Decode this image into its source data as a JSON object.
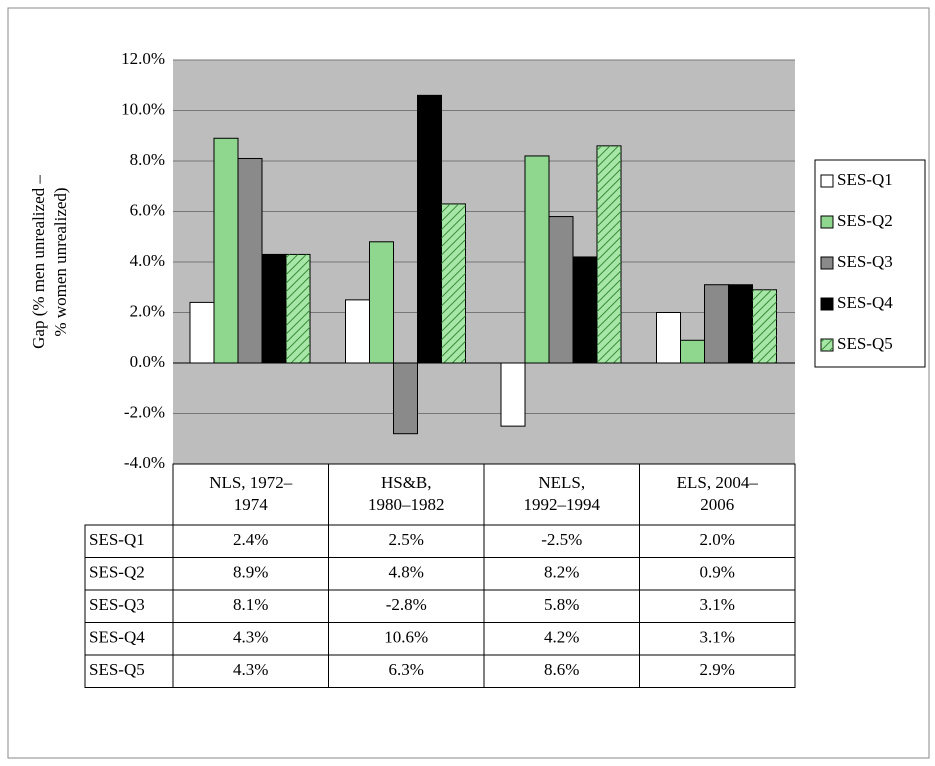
{
  "chart_data": {
    "type": "bar",
    "ylabel": [
      "Gap (% men unrealized –",
      "% women unrealized)"
    ],
    "categories": [
      "NLS, 1972–1974",
      "HS&B, 1980–1982",
      "NELS, 1992–1994",
      "ELS, 2004–2006"
    ],
    "series": [
      {
        "name": "SES-Q1",
        "color": "#ffffff",
        "values": [
          2.4,
          2.5,
          -2.5,
          2.0
        ],
        "value_labels": [
          "2.4%",
          "2.5%",
          "-2.5%",
          "2.0%"
        ]
      },
      {
        "name": "SES-Q2",
        "color": "#8fd68f",
        "values": [
          8.9,
          4.8,
          8.2,
          0.9
        ],
        "value_labels": [
          "8.9%",
          "4.8%",
          "8.2%",
          "0.9%"
        ]
      },
      {
        "name": "SES-Q3",
        "color": "#8a8a8a",
        "values": [
          8.1,
          -2.8,
          5.8,
          3.1
        ],
        "value_labels": [
          "8.1%",
          "-2.8%",
          "5.8%",
          "3.1%"
        ]
      },
      {
        "name": "SES-Q4",
        "color": "#000000",
        "values": [
          4.3,
          10.6,
          4.2,
          3.1
        ],
        "value_labels": [
          "4.3%",
          "10.6%",
          "4.2%",
          "3.1%"
        ]
      },
      {
        "name": "SES-Q5",
        "color": "#a6e6a6",
        "values": [
          4.3,
          6.3,
          8.6,
          2.9
        ],
        "value_labels": [
          "4.3%",
          "6.3%",
          "8.6%",
          "2.9%"
        ]
      }
    ],
    "ylim": [
      -4,
      12
    ],
    "yticks": [
      {
        "value": -4,
        "label": "-4.0%"
      },
      {
        "value": -2,
        "label": "-2.0%"
      },
      {
        "value": 0,
        "label": "0.0%"
      },
      {
        "value": 2,
        "label": "2.0%"
      },
      {
        "value": 4,
        "label": "4.0%"
      },
      {
        "value": 6,
        "label": "6.0%"
      },
      {
        "value": 8,
        "label": "8.0%"
      },
      {
        "value": 10,
        "label": "10.0%"
      },
      {
        "value": 12,
        "label": "12.0%"
      }
    ],
    "grid": true,
    "legend": "right",
    "data_table": true
  }
}
